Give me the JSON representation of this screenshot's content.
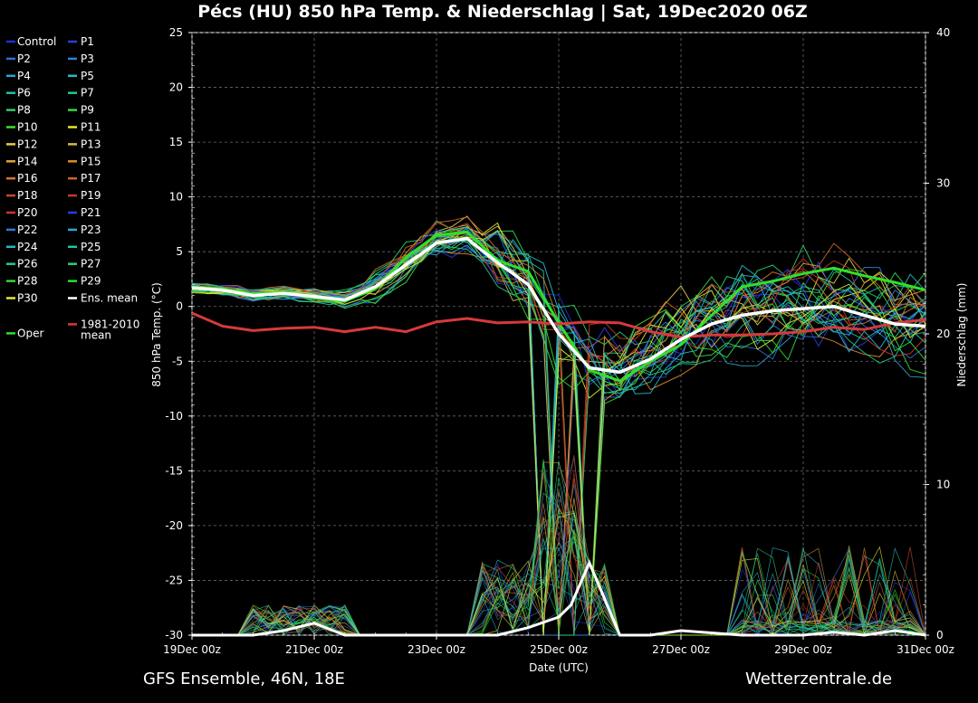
{
  "chart_data": {
    "type": "line",
    "title": "Pécs  (HU)  850 hPa Temp. & Niederschlag | Sat, 19Dec2020 06Z",
    "ylabel": "850 hPa Temp. (°C)",
    "y2label": "Niederschlag (mm)",
    "xlabel": "Date (UTC)",
    "x_ticks": [
      "19Dec 00z",
      "21Dec 00z",
      "23Dec 00z",
      "25Dec 00z",
      "27Dec 00z",
      "29Dec 00z",
      "31Dec 00z"
    ],
    "y_ticks": [
      25,
      20,
      15,
      10,
      5,
      0,
      -5,
      -10,
      -15,
      -20,
      -25,
      -30
    ],
    "y2_ticks": [
      40,
      30,
      20,
      10,
      0
    ],
    "ylim": [
      -30,
      25
    ],
    "y2lim": [
      0,
      40
    ],
    "grid": true,
    "legend_position": "left",
    "legend_entries": [
      {
        "name": "Control",
        "color": "#1f2fd8"
      },
      {
        "name": "P1",
        "color": "#2a3ce0"
      },
      {
        "name": "P2",
        "color": "#2f6fd6"
      },
      {
        "name": "P3",
        "color": "#2f80d8"
      },
      {
        "name": "P4",
        "color": "#2aa4cc"
      },
      {
        "name": "P5",
        "color": "#27b9c9"
      },
      {
        "name": "P6",
        "color": "#24c0a8"
      },
      {
        "name": "P7",
        "color": "#22c98a"
      },
      {
        "name": "P8",
        "color": "#2ecf6a"
      },
      {
        "name": "P9",
        "color": "#2fd84c"
      },
      {
        "name": "P10",
        "color": "#3fdf2a"
      },
      {
        "name": "P11",
        "color": "#e8e62a"
      },
      {
        "name": "P12",
        "color": "#e2cf47"
      },
      {
        "name": "P13",
        "color": "#d9b83f"
      },
      {
        "name": "P14",
        "color": "#e0a53a"
      },
      {
        "name": "P15",
        "color": "#e08a2a"
      },
      {
        "name": "P16",
        "color": "#d8742a"
      },
      {
        "name": "P17",
        "color": "#d06228"
      },
      {
        "name": "P18",
        "color": "#c64a2a"
      },
      {
        "name": "P19",
        "color": "#c43a22"
      },
      {
        "name": "P20",
        "color": "#d63030"
      },
      {
        "name": "P21",
        "color": "#2a3ce0"
      },
      {
        "name": "P22",
        "color": "#2f78d8"
      },
      {
        "name": "P23",
        "color": "#2aa8d0"
      },
      {
        "name": "P24",
        "color": "#2ab6c8"
      },
      {
        "name": "P25",
        "color": "#24c2a6"
      },
      {
        "name": "P26",
        "color": "#26c98c"
      },
      {
        "name": "P27",
        "color": "#2ad070"
      },
      {
        "name": "P28",
        "color": "#36da3a"
      },
      {
        "name": "P29",
        "color": "#2fe02a"
      },
      {
        "name": "P30",
        "color": "#e6e83a"
      },
      {
        "name": "Ens. mean",
        "color": "#ffffff"
      },
      {
        "name": "1981-2010",
        "color": "#d63a3a"
      },
      {
        "name": "mean",
        "color": "#d63a3a"
      },
      {
        "name": "Oper",
        "color": "#2fe02a"
      }
    ],
    "climate_mean": {
      "name": "1981-2010 mean",
      "days": [
        0,
        0.5,
        1,
        1.5,
        2,
        2.5,
        3,
        3.5,
        4,
        4.5,
        5,
        5.5,
        6,
        6.5,
        7,
        7.5,
        8,
        8.5,
        9,
        9.5,
        10,
        10.5,
        11,
        11.5,
        12
      ],
      "values": [
        -0.6,
        -1.8,
        -2.2,
        -2.0,
        -1.9,
        -2.3,
        -1.9,
        -2.3,
        -1.4,
        -1.1,
        -1.5,
        -1.4,
        -1.6,
        -1.4,
        -1.5,
        -2.3,
        -2.8,
        -2.6,
        -2.6,
        -2.5,
        -2.3,
        -1.9,
        -2.1,
        -1.5,
        -1.2
      ]
    },
    "ens_mean": {
      "name": "Ens. mean",
      "days": [
        0,
        0.5,
        1,
        1.5,
        2,
        2.5,
        3,
        3.5,
        4,
        4.5,
        5,
        5.5,
        6,
        6.5,
        7,
        7.5,
        8,
        8.5,
        9,
        9.5,
        10,
        10.5,
        11,
        11.5,
        12
      ],
      "values": [
        1.7,
        1.5,
        1.0,
        1.2,
        0.9,
        0.6,
        1.8,
        3.8,
        5.8,
        6.2,
        4.0,
        2.0,
        -2.5,
        -5.6,
        -6.0,
        -4.8,
        -3.0,
        -1.6,
        -0.8,
        -0.4,
        -0.2,
        0.0,
        -0.8,
        -1.6,
        -1.8
      ]
    },
    "oper": {
      "name": "Oper",
      "days": [
        0,
        0.5,
        1,
        1.5,
        2,
        2.5,
        3,
        3.5,
        4,
        4.5,
        5,
        5.5,
        6,
        6.5,
        7,
        7.5,
        8,
        8.5,
        9,
        9.5,
        10,
        10.5,
        11,
        11.5,
        12
      ],
      "values": [
        1.8,
        1.6,
        1.2,
        1.3,
        0.8,
        0.5,
        1.6,
        4.5,
        6.5,
        6.8,
        4.2,
        3.2,
        -1.5,
        -5.8,
        -6.8,
        -5.0,
        -3.5,
        -0.8,
        1.8,
        2.3,
        3.0,
        3.5,
        2.8,
        2.2,
        1.5
      ]
    },
    "ens_mean_precip": {
      "days": [
        0,
        1,
        1.5,
        2,
        2.5,
        3,
        4,
        4.5,
        5,
        5.5,
        6,
        6.2,
        6.5,
        7,
        7.5,
        8,
        9,
        9.5,
        10,
        10.5,
        11,
        11.5,
        12
      ],
      "values": [
        0,
        0,
        0.3,
        0.8,
        0,
        0,
        0,
        0,
        0,
        0.5,
        1.2,
        2.0,
        4.8,
        0,
        0,
        0.3,
        0,
        0,
        0,
        0.2,
        0,
        0.3,
        0
      ]
    }
  },
  "footer": {
    "left": "GFS Ensemble, 46N, 18E",
    "right": "Wetterzentrale.de"
  }
}
